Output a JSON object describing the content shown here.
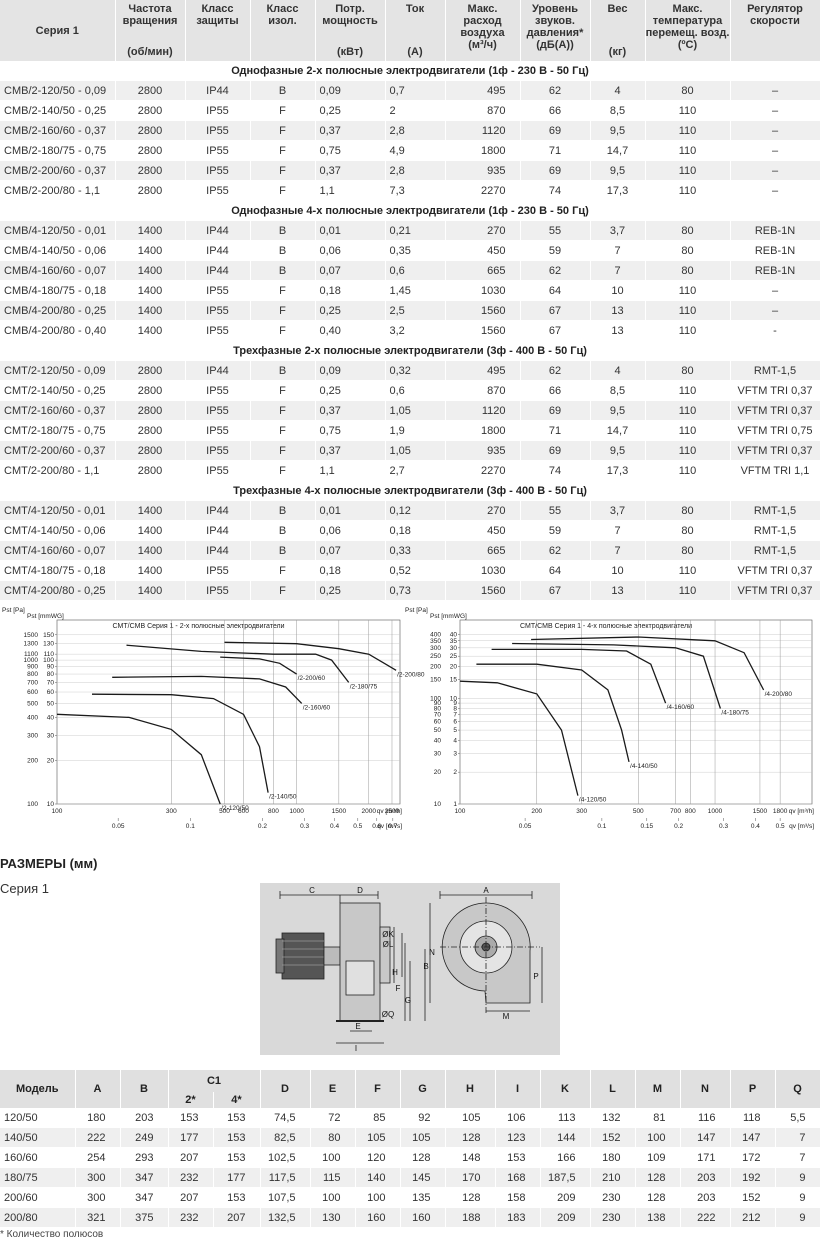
{
  "table": {
    "columns": [
      {
        "lines": [
          "Серия 1"
        ]
      },
      {
        "lines": [
          "Частота",
          "вращения"
        ],
        "unit": "(об/мин)"
      },
      {
        "lines": [
          "Класс",
          "защиты"
        ]
      },
      {
        "lines": [
          "Класс",
          "изол."
        ]
      },
      {
        "lines": [
          "Потр.",
          "мощность"
        ],
        "unit": "(кВт)"
      },
      {
        "lines": [
          "Ток"
        ],
        "unit": "(A)"
      },
      {
        "lines": [
          "Макс.",
          "расход",
          "воздуха",
          "(м³/ч)"
        ]
      },
      {
        "lines": [
          "Уровень",
          "звуков.",
          "давления*",
          "(дБ(А))"
        ]
      },
      {
        "lines": [
          "Вес"
        ],
        "unit": "(кг)"
      },
      {
        "lines": [
          "Макс.",
          "температура",
          "перемещ. возд.",
          "(ºC)"
        ]
      },
      {
        "lines": [
          "Регулятор",
          "скорости"
        ]
      }
    ],
    "sections": [
      {
        "title": "Однофазные 2-х полюсные электродвигатели (1ф - 230 В - 50 Гц)",
        "rows": [
          [
            "CMB/2-120/50 - 0,09",
            "2800",
            "IP44",
            "B",
            "0,09",
            "0,7",
            "495",
            "62",
            "4",
            "80",
            "–"
          ],
          [
            "CMB/2-140/50 - 0,25",
            "2800",
            "IP55",
            "F",
            "0,25",
            "2",
            "870",
            "66",
            "8,5",
            "110",
            "–"
          ],
          [
            "CMB/2-160/60 - 0,37",
            "2800",
            "IP55",
            "F",
            "0,37",
            "2,8",
            "1120",
            "69",
            "9,5",
            "110",
            "–"
          ],
          [
            "CMB/2-180/75 - 0,75",
            "2800",
            "IP55",
            "F",
            "0,75",
            "4,9",
            "1800",
            "71",
            "14,7",
            "110",
            "–"
          ],
          [
            "CMB/2-200/60 - 0,37",
            "2800",
            "IP55",
            "F",
            "0,37",
            "2,8",
            "935",
            "69",
            "9,5",
            "110",
            "–"
          ],
          [
            "CMB/2-200/80 - 1,1",
            "2800",
            "IP55",
            "F",
            "1,1",
            "7,3",
            "2270",
            "74",
            "17,3",
            "110",
            "–"
          ]
        ]
      },
      {
        "title": "Однофазные 4-х полюсные электродвигатели (1ф - 230 В - 50 Гц)",
        "rows": [
          [
            "CMB/4-120/50 - 0,01",
            "1400",
            "IP44",
            "B",
            "0,01",
            "0,21",
            "270",
            "55",
            "3,7",
            "80",
            "REB-1N"
          ],
          [
            "CMB/4-140/50 - 0,06",
            "1400",
            "IP44",
            "B",
            "0,06",
            "0,35",
            "450",
            "59",
            "7",
            "80",
            "REB-1N"
          ],
          [
            "CMB/4-160/60 - 0,07",
            "1400",
            "IP44",
            "B",
            "0,07",
            "0,6",
            "665",
            "62",
            "7",
            "80",
            "REB-1N"
          ],
          [
            "CMB/4-180/75 - 0,18",
            "1400",
            "IP55",
            "F",
            "0,18",
            "1,45",
            "1030",
            "64",
            "10",
            "110",
            "–"
          ],
          [
            "CMB/4-200/80 - 0,25",
            "1400",
            "IP55",
            "F",
            "0,25",
            "2,5",
            "1560",
            "67",
            "13",
            "110",
            "–"
          ],
          [
            "CMB/4-200/80 - 0,40",
            "1400",
            "IP55",
            "F",
            "0,40",
            "3,2",
            "1560",
            "67",
            "13",
            "110",
            "-"
          ]
        ]
      },
      {
        "title": "Трехфазные 2-х полюсные электродвигатели (3ф - 400 В - 50 Гц)",
        "rows": [
          [
            "CMT/2-120/50 - 0,09",
            "2800",
            "IP44",
            "B",
            "0,09",
            "0,32",
            "495",
            "62",
            "4",
            "80",
            "RMT-1,5"
          ],
          [
            "CMT/2-140/50 - 0,25",
            "2800",
            "IP55",
            "F",
            "0,25",
            "0,6",
            "870",
            "66",
            "8,5",
            "110",
            "VFTM TRI 0,37"
          ],
          [
            "CMT/2-160/60 - 0,37",
            "2800",
            "IP55",
            "F",
            "0,37",
            "1,05",
            "1120",
            "69",
            "9,5",
            "110",
            "VFTM TRI 0,37"
          ],
          [
            "CMT/2-180/75 - 0,75",
            "2800",
            "IP55",
            "F",
            "0,75",
            "1,9",
            "1800",
            "71",
            "14,7",
            "110",
            "VFTM TRI 0,75"
          ],
          [
            "CMT/2-200/60 - 0,37",
            "2800",
            "IP55",
            "F",
            "0,37",
            "1,05",
            "935",
            "69",
            "9,5",
            "110",
            "VFTM TRI 0,37"
          ],
          [
            "CMT/2-200/80 - 1,1",
            "2800",
            "IP55",
            "F",
            "1,1",
            "2,7",
            "2270",
            "74",
            "17,3",
            "110",
            "VFTM TRI 1,1"
          ]
        ]
      },
      {
        "title": "Трехфазные 4-х полюсные электродвигатели (3ф - 400 В - 50 Гц)",
        "rows": [
          [
            "CMT/4-120/50 - 0,01",
            "1400",
            "IP44",
            "B",
            "0,01",
            "0,12",
            "270",
            "55",
            "3,7",
            "80",
            "RMT-1,5"
          ],
          [
            "CMT/4-140/50 - 0,06",
            "1400",
            "IP44",
            "B",
            "0,06",
            "0,18",
            "450",
            "59",
            "7",
            "80",
            "RMT-1,5"
          ],
          [
            "CMT/4-160/60 - 0,07",
            "1400",
            "IP44",
            "B",
            "0,07",
            "0,33",
            "665",
            "62",
            "7",
            "80",
            "RMT-1,5"
          ],
          [
            "CMT/4-180/75 - 0,18",
            "1400",
            "IP55",
            "F",
            "0,18",
            "0,52",
            "1030",
            "64",
            "10",
            "110",
            "VFTM TRI 0,37"
          ],
          [
            "CMT/4-200/80 - 0,25",
            "1400",
            "IP55",
            "F",
            "0,25",
            "0,73",
            "1560",
            "67",
            "13",
            "110",
            "VFTM TRI 0,37"
          ]
        ]
      }
    ]
  },
  "charts": [
    {
      "type": "line",
      "title": "CMT/CMB   Серия 1 - 2-х полюсные электродвигатели",
      "y_label": "Pst [Pa]",
      "y2_label": "Pst [mmWG]",
      "x_label": "qv [m³/h]",
      "x2_label": "qv [m³/s]",
      "log_scale": true,
      "grid": true,
      "color": "#1a1a1a",
      "xlim": [
        100,
        2700
      ],
      "ylim": [
        100,
        1900
      ],
      "xticks": [
        100,
        300,
        500,
        600,
        800,
        1000,
        1500,
        2000,
        2500
      ],
      "x2ticks": [
        0.05,
        0.1,
        0.2,
        0.3,
        0.4,
        0.5,
        0.6,
        0.7
      ],
      "yticks": [
        1500,
        1300,
        1100,
        1000,
        900,
        800,
        700,
        600,
        500,
        400,
        300,
        200,
        100
      ],
      "y2ticks": [
        150,
        130,
        110,
        100,
        90,
        80,
        70,
        60,
        50,
        40,
        30,
        20,
        10
      ],
      "series": [
        {
          "name": "/2-120/50",
          "x": [
            100,
            200,
            300,
            400,
            480
          ],
          "values": [
            420,
            400,
            330,
            220,
            100
          ]
        },
        {
          "name": "/2-140/50",
          "x": [
            140,
            300,
            450,
            600,
            700,
            760
          ],
          "values": [
            580,
            575,
            540,
            420,
            250,
            120
          ]
        },
        {
          "name": "/2-160/60",
          "x": [
            170,
            400,
            700,
            900,
            1050
          ],
          "values": [
            760,
            770,
            740,
            650,
            500
          ]
        },
        {
          "name": "/2-180/75",
          "x": [
            195,
            400,
            800,
            1200,
            1400,
            1650
          ],
          "values": [
            1270,
            1150,
            1100,
            1100,
            1000,
            700
          ]
        },
        {
          "name": "/2-200/60",
          "x": [
            480,
            700,
            850,
            1000
          ],
          "values": [
            1050,
            1020,
            950,
            800
          ]
        },
        {
          "name": "/2-200/80",
          "x": [
            500,
            1000,
            1500,
            2000,
            2600
          ],
          "values": [
            1330,
            1300,
            1200,
            1100,
            850
          ]
        }
      ]
    },
    {
      "type": "line",
      "title": "CMT/CMB   Серия 1 - 4-х полюсные электродвигатели",
      "y_label": "Pst [Pa]",
      "y2_label": "Pst [mmWG]",
      "x_label": "qv [m³/h]",
      "x2_label": "qv [m³/s]",
      "log_scale": true,
      "grid": true,
      "color": "#1a1a1a",
      "xlim": [
        100,
        2400
      ],
      "ylim": [
        10,
        550
      ],
      "xticks": [
        100,
        200,
        300,
        500,
        700,
        800,
        1000,
        1500,
        1800
      ],
      "x2ticks": [
        0.05,
        0.1,
        0.15,
        0.2,
        0.3,
        0.4,
        0.5
      ],
      "yticks": [
        400,
        350,
        300,
        250,
        200,
        150,
        100,
        90,
        80,
        70,
        60,
        50,
        40,
        30,
        20,
        10
      ],
      "y2ticks": [
        40,
        35,
        30,
        25,
        20,
        15,
        10,
        9,
        8,
        7,
        6,
        5,
        4,
        3,
        2,
        1
      ],
      "series": [
        {
          "name": "/4-120/50",
          "x": [
            100,
            140,
            200,
            250,
            290
          ],
          "values": [
            145,
            140,
            110,
            50,
            12
          ]
        },
        {
          "name": "/4-140/50",
          "x": [
            116,
            200,
            300,
            380,
            430,
            460
          ],
          "values": [
            210,
            210,
            185,
            120,
            50,
            25
          ]
        },
        {
          "name": "/4-160/60",
          "x": [
            133,
            300,
            450,
            560,
            640
          ],
          "values": [
            290,
            290,
            280,
            210,
            90
          ]
        },
        {
          "name": "/4-180/75",
          "x": [
            160,
            400,
            700,
            900,
            1050
          ],
          "values": [
            330,
            320,
            300,
            250,
            80
          ]
        },
        {
          "name": "/4-200/80",
          "x": [
            190,
            500,
            1000,
            1300,
            1550
          ],
          "values": [
            360,
            380,
            350,
            270,
            120
          ]
        }
      ]
    }
  ],
  "dimensions": {
    "title": "РАЗМЕРЫ (мм)",
    "subtitle": "Серия 1",
    "diagram_labels": [
      "C",
      "D",
      "A",
      "ØK",
      "ØL",
      "B",
      "N",
      "P",
      "H",
      "F",
      "G",
      "E",
      "ØQ",
      "I",
      "M"
    ]
  },
  "dim_table": {
    "columns": [
      "Модель",
      "A",
      "B",
      "C1",
      "D",
      "E",
      "F",
      "G",
      "H",
      "I",
      "K",
      "L",
      "M",
      "N",
      "P",
      "Q"
    ],
    "c1_sub": [
      "2*",
      "4*"
    ],
    "rows": [
      [
        "120/50",
        "180",
        "203",
        "153",
        "153",
        "74,5",
        "72",
        "85",
        "92",
        "105",
        "106",
        "113",
        "132",
        "81",
        "116",
        "118",
        "5,5"
      ],
      [
        "140/50",
        "222",
        "249",
        "177",
        "153",
        "82,5",
        "80",
        "105",
        "105",
        "128",
        "123",
        "144",
        "152",
        "100",
        "147",
        "147",
        "7"
      ],
      [
        "160/60",
        "254",
        "293",
        "207",
        "153",
        "102,5",
        "100",
        "120",
        "128",
        "148",
        "153",
        "166",
        "180",
        "109",
        "171",
        "172",
        "7"
      ],
      [
        "180/75",
        "300",
        "347",
        "232",
        "177",
        "117,5",
        "115",
        "140",
        "145",
        "170",
        "168",
        "187,5",
        "210",
        "128",
        "203",
        "192",
        "9"
      ],
      [
        "200/60",
        "300",
        "347",
        "207",
        "153",
        "107,5",
        "100",
        "100",
        "135",
        "128",
        "158",
        "209",
        "230",
        "128",
        "203",
        "152",
        "9"
      ],
      [
        "200/80",
        "321",
        "375",
        "232",
        "207",
        "132,5",
        "130",
        "160",
        "160",
        "188",
        "183",
        "209",
        "230",
        "138",
        "222",
        "212",
        "9"
      ]
    ]
  },
  "footnote": "* Количество полюсов"
}
